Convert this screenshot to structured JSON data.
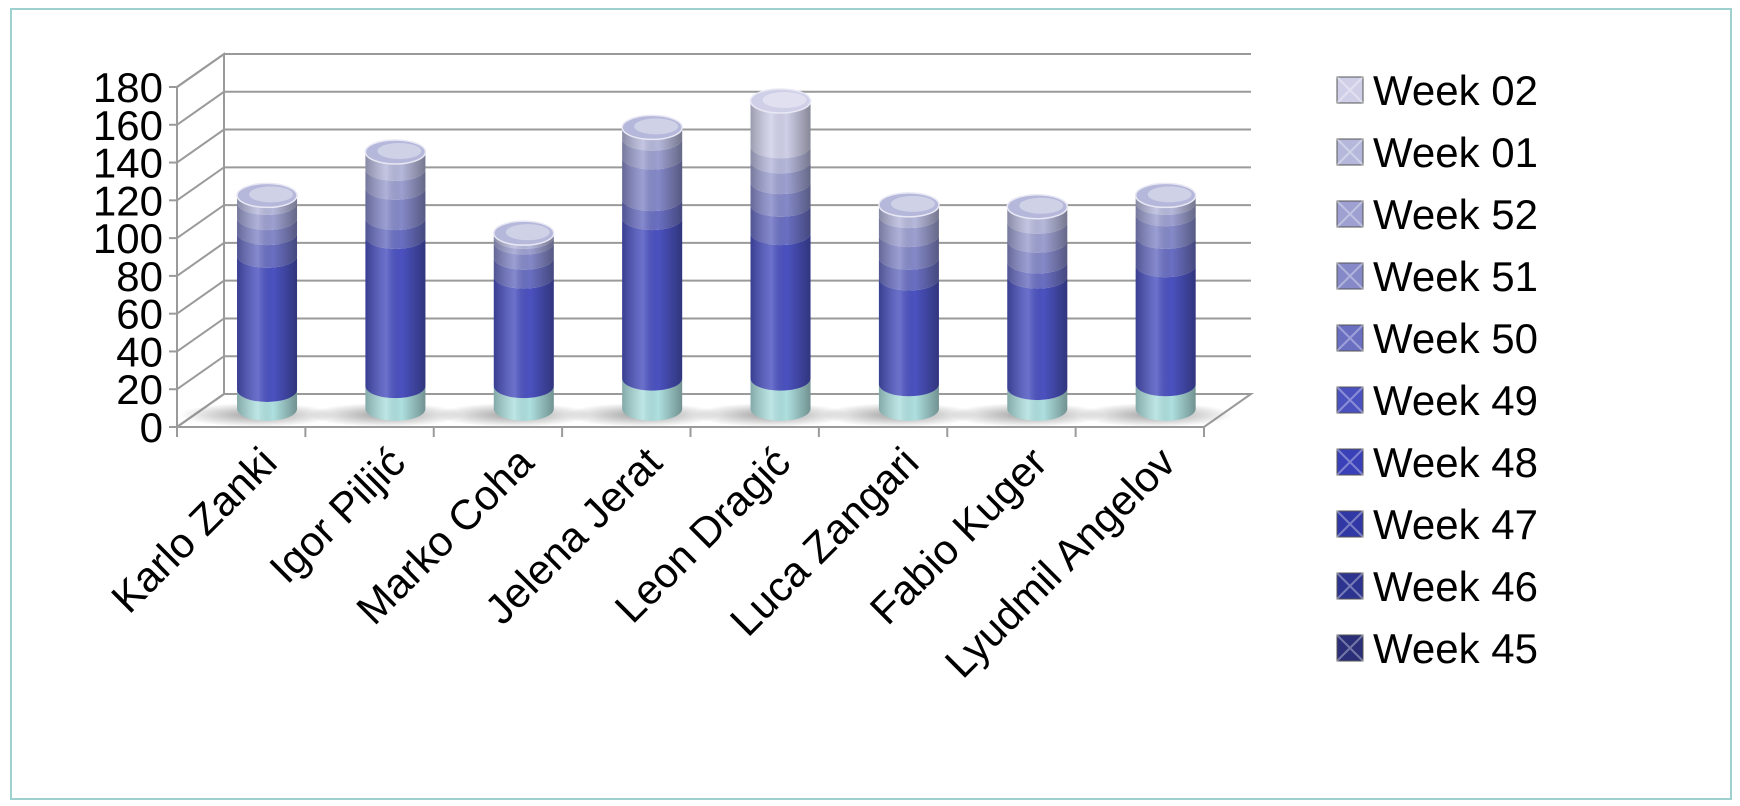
{
  "chart_data": {
    "type": "bar",
    "stacked": true,
    "style": "3d-cylinder",
    "categories": [
      "Karlo Zanki",
      "Igor Piljić",
      "Marko Coha",
      "Jelena Jerat",
      "Leon Dragić",
      "Luca Zangari",
      "Fabio Kuger",
      "Lyudmil Angelov"
    ],
    "ylim": [
      0,
      180
    ],
    "yticks": [
      "0",
      "20",
      "40",
      "60",
      "80",
      "100",
      "120",
      "140",
      "160",
      "180"
    ],
    "grid": true,
    "legend_position": "right",
    "series": [
      {
        "name": "Week 45",
        "color": "#2a2f78",
        "values": [
          0,
          0,
          0,
          0,
          0,
          0,
          0,
          0
        ]
      },
      {
        "name": "Week 46",
        "color": "#2d3490",
        "values": [
          0,
          0,
          0,
          0,
          0,
          0,
          0,
          0
        ]
      },
      {
        "name": "Week 47",
        "color": "#3138a5",
        "values": [
          0,
          0,
          0,
          0,
          0,
          0,
          0,
          0
        ]
      },
      {
        "name": "Week 48",
        "color": "#3940b8",
        "values": [
          10,
          12,
          12,
          16,
          16,
          13,
          11,
          13
        ]
      },
      {
        "name": "Week 49",
        "color": "#4b52c0",
        "values": [
          71,
          79,
          58,
          85,
          77,
          56,
          59,
          63
        ]
      },
      {
        "name": "Week 50",
        "color": "#6a6fc2",
        "values": [
          12,
          10,
          10,
          10,
          15,
          11,
          8,
          15
        ]
      },
      {
        "name": "Week 51",
        "color": "#8589c8",
        "values": [
          8,
          16,
          8,
          22,
          12,
          12,
          11,
          12
        ]
      },
      {
        "name": "Week 52",
        "color": "#9da0d0",
        "values": [
          8,
          10,
          3,
          10,
          11,
          10,
          10,
          6
        ]
      },
      {
        "name": "Week 01",
        "color": "#b6b8db",
        "values": [
          4,
          9,
          2,
          6,
          8,
          6,
          8,
          4
        ]
      },
      {
        "name": "Week 02",
        "color": "#cfd0e8",
        "values": [
          0,
          0,
          0,
          0,
          24,
          0,
          0,
          0
        ]
      }
    ],
    "base_band_color": "#aee0df"
  }
}
